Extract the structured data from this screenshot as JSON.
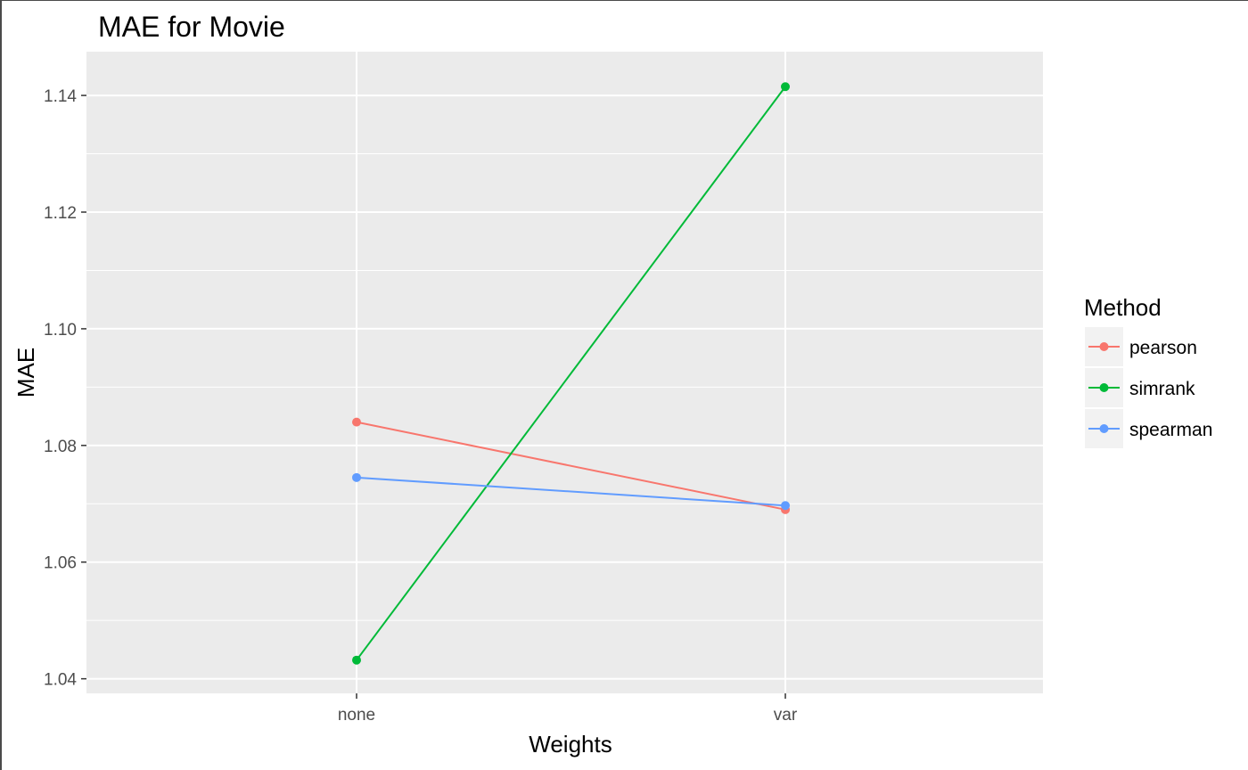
{
  "chart_data": {
    "type": "line",
    "title": "MAE for Movie",
    "xlabel": "Weights",
    "ylabel": "MAE",
    "categories": [
      "none",
      "var"
    ],
    "ylim": [
      1.0375,
      1.1475
    ],
    "yticks": [
      1.04,
      1.06,
      1.08,
      1.1,
      1.12,
      1.14
    ],
    "ytick_labels": [
      "1.04",
      "1.06",
      "1.08",
      "1.10",
      "1.12",
      "1.14"
    ],
    "grid": true,
    "legend": {
      "title": "Method",
      "position": "right"
    },
    "series": [
      {
        "name": "pearson",
        "color": "#F8766D",
        "values": [
          1.084,
          1.069
        ]
      },
      {
        "name": "simrank",
        "color": "#00BA38",
        "values": [
          1.0432,
          1.1415
        ]
      },
      {
        "name": "spearman",
        "color": "#619CFF",
        "values": [
          1.0745,
          1.0697
        ]
      }
    ]
  }
}
